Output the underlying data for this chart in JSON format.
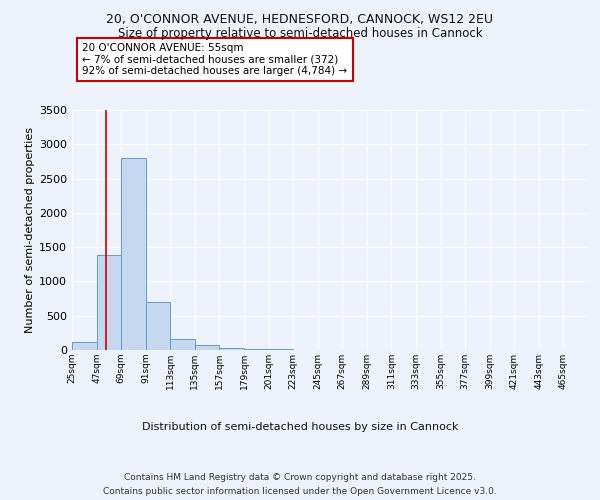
{
  "title_line1": "20, O'CONNOR AVENUE, HEDNESFORD, CANNOCK, WS12 2EU",
  "title_line2": "Size of property relative to semi-detached houses in Cannock",
  "xlabel": "Distribution of semi-detached houses by size in Cannock",
  "ylabel": "Number of semi-detached properties",
  "bin_labels": [
    "25sqm",
    "47sqm",
    "69sqm",
    "91sqm",
    "113sqm",
    "135sqm",
    "157sqm",
    "179sqm",
    "201sqm",
    "223sqm",
    "245sqm",
    "267sqm",
    "289sqm",
    "311sqm",
    "333sqm",
    "355sqm",
    "377sqm",
    "399sqm",
    "421sqm",
    "443sqm",
    "465sqm"
  ],
  "bin_edges": [
    25,
    47,
    69,
    91,
    113,
    135,
    157,
    179,
    201,
    223,
    245,
    267,
    289,
    311,
    333,
    355,
    377,
    399,
    421,
    443,
    465,
    487
  ],
  "bar_heights": [
    120,
    1380,
    2800,
    700,
    160,
    80,
    30,
    15,
    8,
    5,
    3,
    2,
    2,
    1,
    1,
    1,
    0,
    0,
    0,
    0,
    0
  ],
  "bar_color": "#c5d8f0",
  "bar_edge_color": "#5b9bd5",
  "red_line_x": 55,
  "annotation_title": "20 O'CONNOR AVENUE: 55sqm",
  "annotation_line2": "← 7% of semi-detached houses are smaller (372)",
  "annotation_line3": "92% of semi-detached houses are larger (4,784) →",
  "annotation_box_color": "#ffffff",
  "annotation_box_edge": "#cc0000",
  "ylim": [
    0,
    3500
  ],
  "yticks": [
    0,
    500,
    1000,
    1500,
    2000,
    2500,
    3000,
    3500
  ],
  "background_color": "#eef2fa",
  "footer_line1": "Contains HM Land Registry data © Crown copyright and database right 2025.",
  "footer_line2": "Contains public sector information licensed under the Open Government Licence v3.0."
}
